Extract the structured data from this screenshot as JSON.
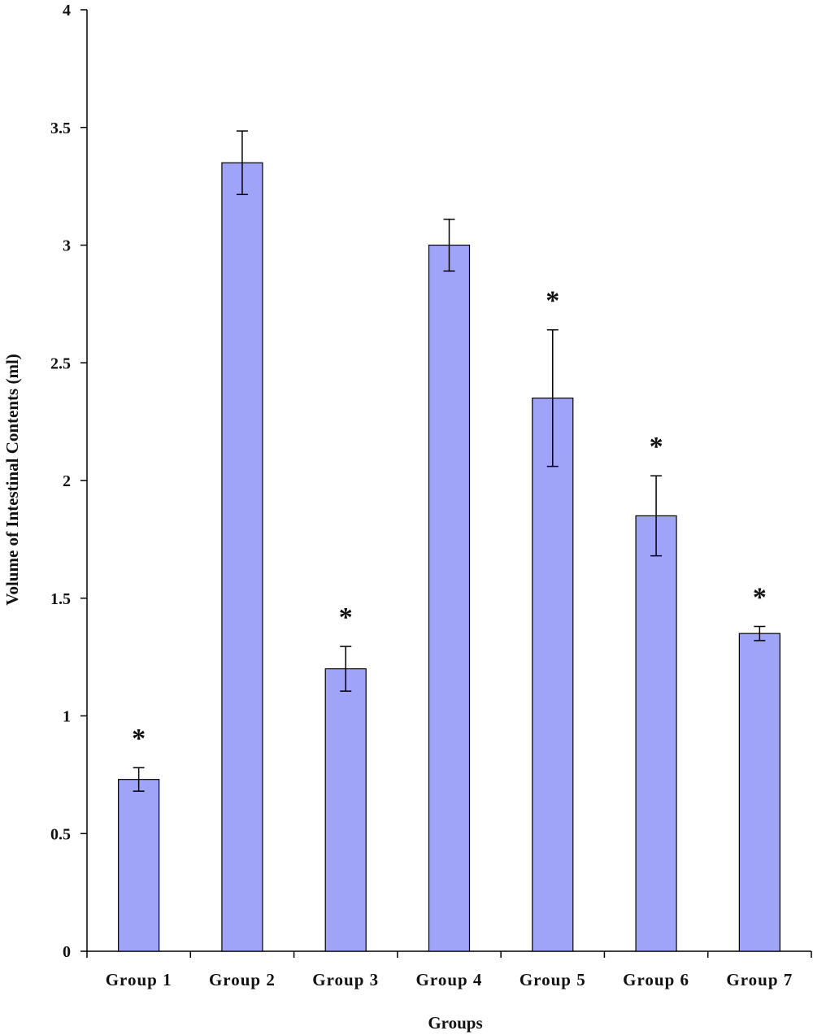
{
  "chart_data": {
    "type": "bar",
    "title": "",
    "xlabel": "Groups",
    "ylabel": "Volume of Intestinal Contents (ml)",
    "ylim": [
      0,
      4
    ],
    "yticks": [
      "0",
      "0.5",
      "1",
      "1.5",
      "2",
      "2.5",
      "3",
      "3.5",
      "4"
    ],
    "categories": [
      "Group 1",
      "Group 2",
      "Group 3",
      "Group 4",
      "Group 5",
      "Group 6",
      "Group 7"
    ],
    "values": [
      0.73,
      3.35,
      1.2,
      3.0,
      2.35,
      1.85,
      1.35
    ],
    "errors": [
      0.05,
      0.135,
      0.095,
      0.11,
      0.29,
      0.17,
      0.03
    ],
    "significance": [
      "*",
      "",
      "*",
      "",
      "*",
      "*",
      "*"
    ],
    "bar_color": "#a0a4f8",
    "bar_edge_color": "#000000",
    "grid": false,
    "legend": "none"
  }
}
